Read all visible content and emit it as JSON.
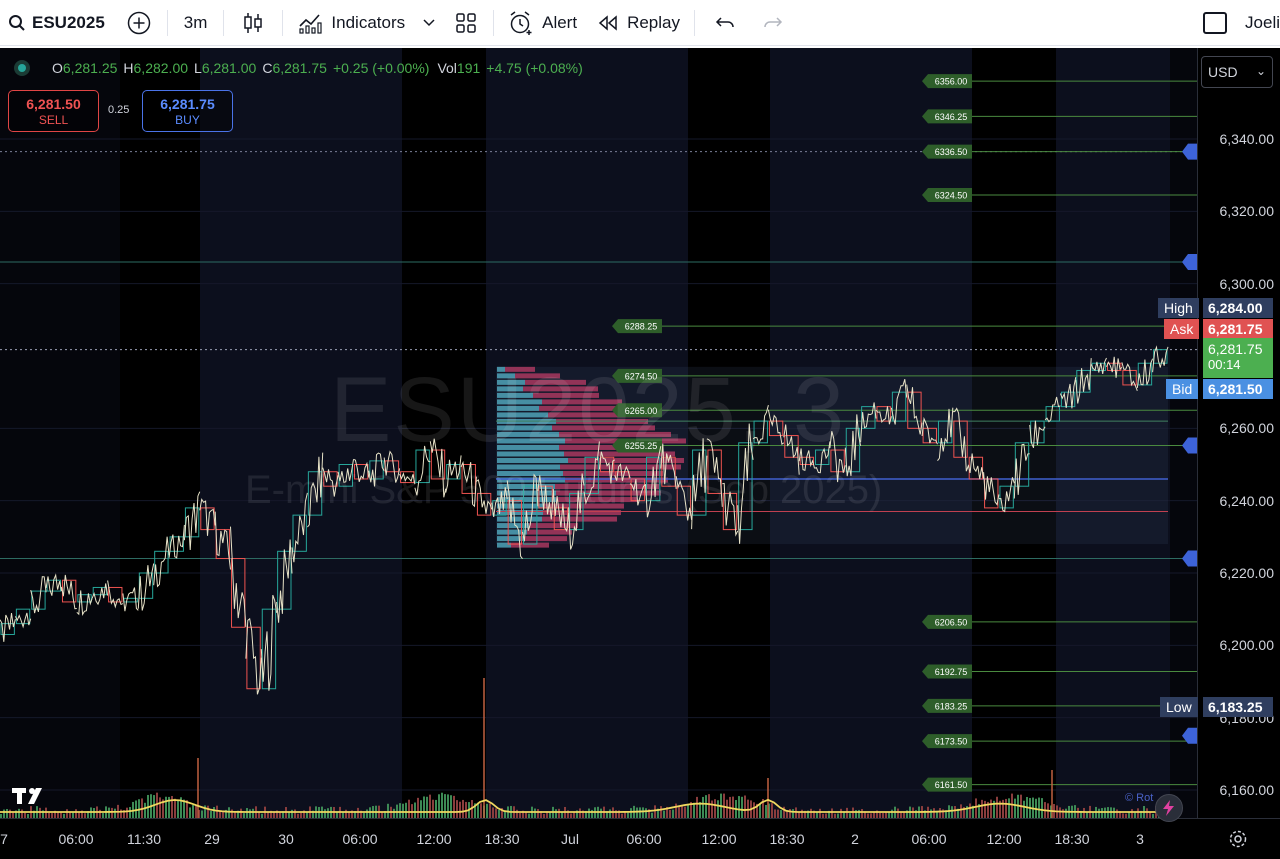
{
  "toolbar": {
    "symbol": "ESU2025",
    "interval": "3m",
    "indicators_label": "Indicators",
    "alert_label": "Alert",
    "replay_label": "Replay",
    "user_label": "Joeli"
  },
  "legend": {
    "open_key": "O",
    "open": "6,281.25",
    "high_key": "H",
    "high": "6,282.00",
    "low_key": "L",
    "low": "6,281.00",
    "close_key": "C",
    "close": "6,281.75",
    "change": "+0.25 (+0.00%)",
    "vol_key": "Vol",
    "vol": "191",
    "vol_change": "+4.75 (+0.08%)"
  },
  "trade": {
    "sell_price": "6,281.50",
    "sell_label": "SELL",
    "spread": "0.25",
    "buy_price": "6,281.75",
    "buy_label": "BUY"
  },
  "watermark": {
    "main": "ESU2025, 3",
    "sub": "E-mini S&P 500 Futures (Sep 2025)"
  },
  "price_axis": {
    "currency": "USD",
    "ticks": [
      "6,340.00",
      "6,320.00",
      "6,300.00",
      "6,260.00",
      "6,240.00",
      "6,220.00",
      "6,200.00",
      "6,180.00",
      "6,160.00"
    ],
    "high_label": "High",
    "high_value": "6,284.00",
    "ask_label": "Ask",
    "ask_value": "6,281.75",
    "last_value": "6,281.75",
    "countdown": "00:14",
    "bid_label": "Bid",
    "bid_value": "6,281.50",
    "low_label": "Low",
    "low_value": "6,183.25"
  },
  "time_axis": {
    "labels": [
      "7",
      "06:00",
      "11:30",
      "29",
      "30",
      "06:00",
      "12:00",
      "18:30",
      "Jul",
      "06:00",
      "12:00",
      "18:30",
      "2",
      "06:00",
      "12:00",
      "18:30",
      "3"
    ]
  },
  "level_labels": [
    "6356.00",
    "6346.25",
    "6336.50",
    "6324.50",
    "6288.25",
    "6274.50",
    "6265.00",
    "6255.25",
    "6206.50",
    "6192.75",
    "6183.25",
    "6173.50",
    "6161.50"
  ],
  "footer": {
    "rot_label": "© Rot"
  },
  "colors": {
    "up": "#26a69a",
    "down": "#ef5350",
    "candle_body": "#e8e3c8",
    "level_line": "#4a8a3f",
    "level_badge": "#2e5e2a",
    "high_tag": "#2f3e5f",
    "ask_tag": "#e05252",
    "bid_tag": "#4a90e2",
    "last_tag": "#4caf50",
    "low_tag": "#2f3e5f",
    "session_shade": "#0d0f1a"
  },
  "chart_data": {
    "type": "candlestick",
    "interval": "3m",
    "ylim": [
      6155,
      6360
    ],
    "y_ticks": [
      6160,
      6180,
      6200,
      6220,
      6240,
      6260,
      6300,
      6320,
      6340
    ],
    "current_price": 6281.75,
    "high": 6284.0,
    "low": 6183.25,
    "levels": [
      6356.0,
      6346.25,
      6336.5,
      6324.5,
      6288.25,
      6274.5,
      6265.0,
      6255.25,
      6206.5,
      6192.75,
      6183.25,
      6173.5,
      6161.5
    ],
    "price_path": [
      [
        6203,
        6206,
        6210,
        6215,
        6218,
        6212,
        6214,
        6216,
        6212,
        6213,
        6220,
        6226,
        6230,
        6238,
        6232,
        6224,
        6205,
        6188,
        6210,
        6226,
        6236,
        6248,
        6244,
        6250,
        6246,
        6251,
        6248,
        6245,
        6254,
        6246,
        6250,
        6242,
        6236,
        6240,
        6228,
        6244,
        6238,
        6232,
        6242,
        6252
      ]
    ]
  }
}
